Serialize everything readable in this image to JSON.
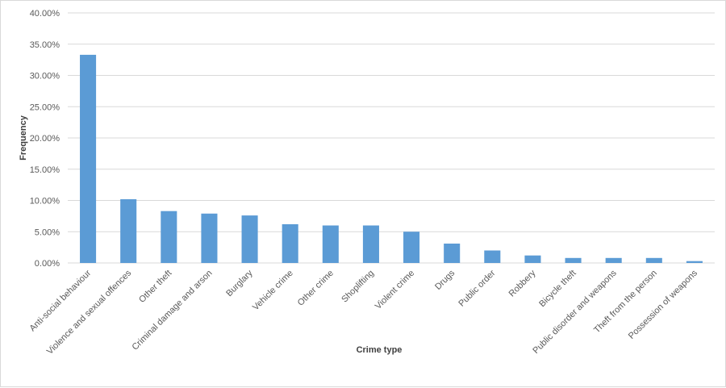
{
  "chart_data": {
    "type": "bar",
    "title": "",
    "xlabel": "Crime type",
    "ylabel": "Frequency",
    "ylim": [
      0,
      40
    ],
    "ytick_step": 5,
    "ytick_labels": [
      "0.00%",
      "5.00%",
      "10.00%",
      "15.00%",
      "20.00%",
      "25.00%",
      "30.00%",
      "35.00%",
      "40.00%"
    ],
    "grid": true,
    "legend": "none",
    "bar_color": "#5b9bd5",
    "categories": [
      "Anti-social behaviour",
      "Violence and sexual offences",
      "Other theft",
      "Criminal damage and arson",
      "Burglary",
      "Vehicle crime",
      "Other crime",
      "Shoplifting",
      "Violent crime",
      "Drugs",
      "Public order",
      "Robbery",
      "Bicycle theft",
      "Public disorder and weapons",
      "Theft from the person",
      "Possession of weapons"
    ],
    "values": [
      33.3,
      10.2,
      8.3,
      7.9,
      7.6,
      6.2,
      6.0,
      6.0,
      5.0,
      3.1,
      2.0,
      1.2,
      0.8,
      0.8,
      0.8,
      0.3
    ]
  }
}
